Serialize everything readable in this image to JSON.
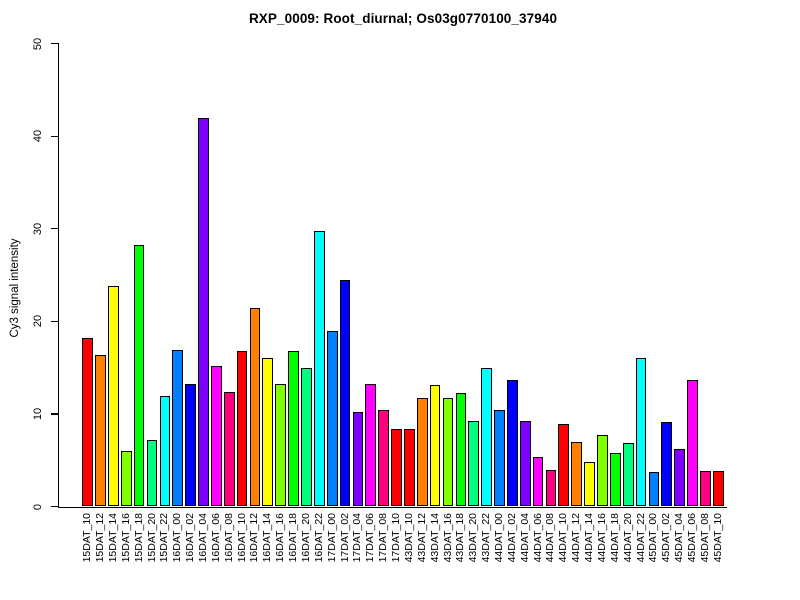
{
  "chart_data": {
    "type": "bar",
    "title": "RXP_0009: Root_diurnal; Os03g0770100_37940",
    "ylabel": "Cy3 signal intensity",
    "xlabel": "",
    "ylim": [
      0,
      50
    ],
    "yticks": [
      0,
      10,
      20,
      30,
      40,
      50
    ],
    "grid": false,
    "legend": null,
    "background": "#FFFFFF",
    "bar_border_color": "#000000",
    "palette_12": [
      "#FF0000",
      "#FF8000",
      "#FFFF00",
      "#80FF00",
      "#00FF00",
      "#00FF80",
      "#00FFFF",
      "#0080FF",
      "#0000FF",
      "#8000FF",
      "#FF00FF",
      "#FF0080"
    ],
    "categories": [
      "15DAT_10",
      "15DAT_12",
      "15DAT_14",
      "15DAT_16",
      "15DAT_18",
      "15DAT_20",
      "15DAT_22",
      "16DAT_00",
      "16DAT_02",
      "16DAT_04",
      "16DAT_06",
      "16DAT_08",
      "16DAT_10",
      "16DAT_12",
      "16DAT_14",
      "16DAT_16",
      "16DAT_18",
      "16DAT_20",
      "16DAT_22",
      "17DAT_00",
      "17DAT_02",
      "17DAT_04",
      "17DAT_06",
      "17DAT_08",
      "17DAT_10",
      "43DAT_10",
      "43DAT_12",
      "43DAT_14",
      "43DAT_16",
      "43DAT_18",
      "43DAT_20",
      "43DAT_22",
      "44DAT_00",
      "44DAT_02",
      "44DAT_04",
      "44DAT_06",
      "44DAT_08",
      "44DAT_10",
      "44DAT_12",
      "44DAT_14",
      "44DAT_16",
      "44DAT_18",
      "44DAT_20",
      "44DAT_22",
      "45DAT_00",
      "45DAT_02",
      "45DAT_04",
      "45DAT_06",
      "45DAT_08",
      "45DAT_10"
    ],
    "values": [
      18.1,
      16.3,
      23.8,
      5.9,
      28.2,
      7.1,
      11.9,
      16.8,
      13.2,
      41.9,
      15.1,
      12.3,
      16.7,
      21.4,
      16.0,
      13.2,
      16.7,
      14.9,
      29.7,
      18.9,
      24.4,
      10.1,
      13.2,
      10.3,
      8.3,
      8.3,
      11.6,
      13.0,
      11.6,
      12.2,
      9.2,
      14.9,
      10.4,
      13.6,
      9.2,
      5.3,
      3.9,
      8.8,
      6.9,
      4.7,
      7.7,
      5.7,
      6.8,
      16.0,
      3.7,
      9.0,
      6.1,
      13.6,
      3.8,
      3.8
    ],
    "colors": [
      "#FF0000",
      "#FF8000",
      "#FFFF00",
      "#80FF00",
      "#00FF00",
      "#00FF80",
      "#00FFFF",
      "#0080FF",
      "#0000FF",
      "#8000FF",
      "#FF00FF",
      "#FF0080",
      "#FF0000",
      "#FF8000",
      "#FFFF00",
      "#80FF00",
      "#00FF00",
      "#00FF80",
      "#00FFFF",
      "#0080FF",
      "#0000FF",
      "#8000FF",
      "#FF00FF",
      "#FF0080",
      "#FF0000",
      "#FF0000",
      "#FF8000",
      "#FFFF00",
      "#80FF00",
      "#00FF00",
      "#00FF80",
      "#00FFFF",
      "#0080FF",
      "#0000FF",
      "#8000FF",
      "#FF00FF",
      "#FF0080",
      "#FF0000",
      "#FF8000",
      "#FFFF00",
      "#80FF00",
      "#00FF00",
      "#00FF80",
      "#00FFFF",
      "#0080FF",
      "#0000FF",
      "#8000FF",
      "#FF00FF",
      "#FF0080",
      "#FF0000"
    ]
  }
}
